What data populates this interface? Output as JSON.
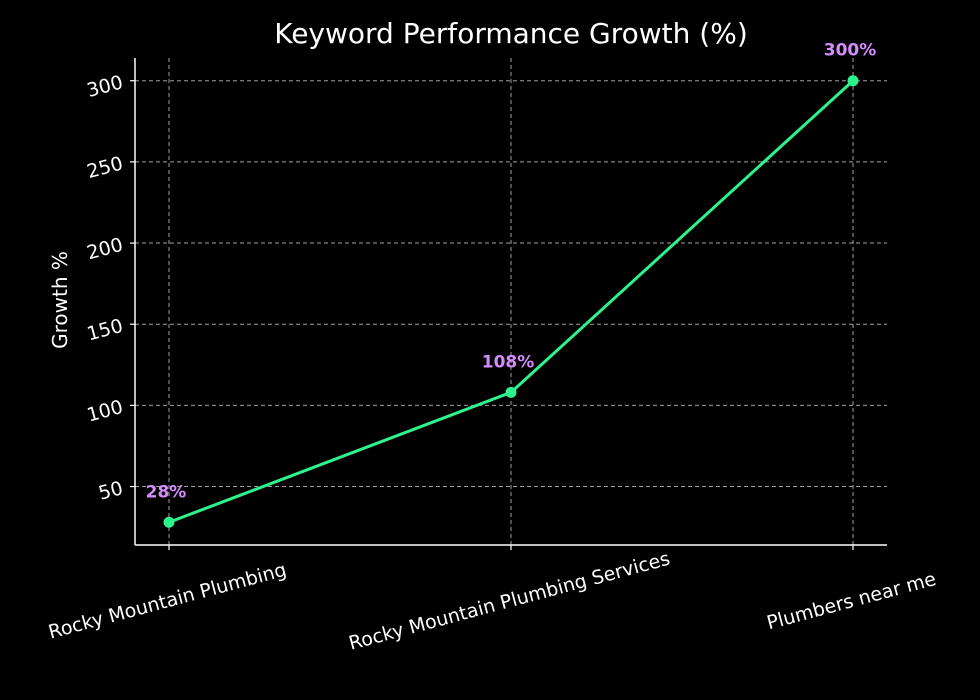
{
  "chart_data": {
    "type": "line",
    "title": "Keyword Performance Growth (%)",
    "xlabel": "",
    "ylabel": "Growth %",
    "categories": [
      "Rocky Mountain Plumbing",
      "Rocky Mountain Plumbing Services",
      "Plumbers near me"
    ],
    "series": [
      {
        "name": "Growth %",
        "values": [
          28,
          108,
          300
        ],
        "labels": [
          "28%",
          "108%",
          "300%"
        ]
      }
    ],
    "yticks": [
      50,
      100,
      150,
      200,
      250,
      300
    ],
    "ylim": [
      14,
      314
    ],
    "grid": true,
    "legend": "none",
    "colors": {
      "background": "#000000",
      "line": "#2ef28b",
      "marker": "#2ef28b",
      "data_label": "#d58cff",
      "text": "#ffffff",
      "grid": "#bdbdbd"
    }
  }
}
